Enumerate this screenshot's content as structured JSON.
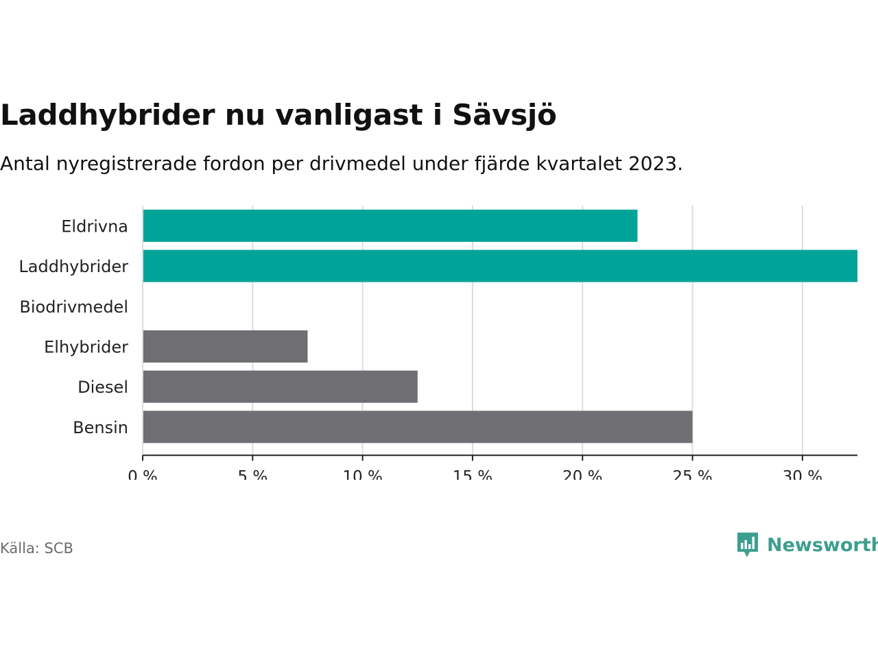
{
  "chart_data": {
    "type": "bar",
    "orientation": "horizontal",
    "title": "Laddhybrider nu vanligast i Sävsjö",
    "subtitle": "Antal nyregistrerade fordon per drivmedel under fjärde kvartalet 2023.",
    "categories": [
      "Eldrivna",
      "Laddhybrider",
      "Biodrivmedel",
      "Elhybrider",
      "Diesel",
      "Bensin"
    ],
    "values": [
      22.5,
      32.5,
      0,
      7.5,
      12.5,
      25
    ],
    "bar_colors": [
      "#00a397",
      "#00a397",
      "#00a397",
      "#6e6e73",
      "#6e6e73",
      "#6e6e73"
    ],
    "xlim": [
      0,
      32.5
    ],
    "xticks": [
      0,
      5,
      10,
      15,
      20,
      25,
      30
    ],
    "xtick_labels": [
      "0 %",
      "5 %",
      "10 %",
      "15 %",
      "20 %",
      "25 %",
      "30 %"
    ],
    "grid": true,
    "unit": "%"
  },
  "footer": {
    "source": "Källa: SCB",
    "brand": "Newsworthy"
  },
  "colors": {
    "accent": "#00a397",
    "neutral": "#6e6e73",
    "brand": "#3d9e8f"
  }
}
